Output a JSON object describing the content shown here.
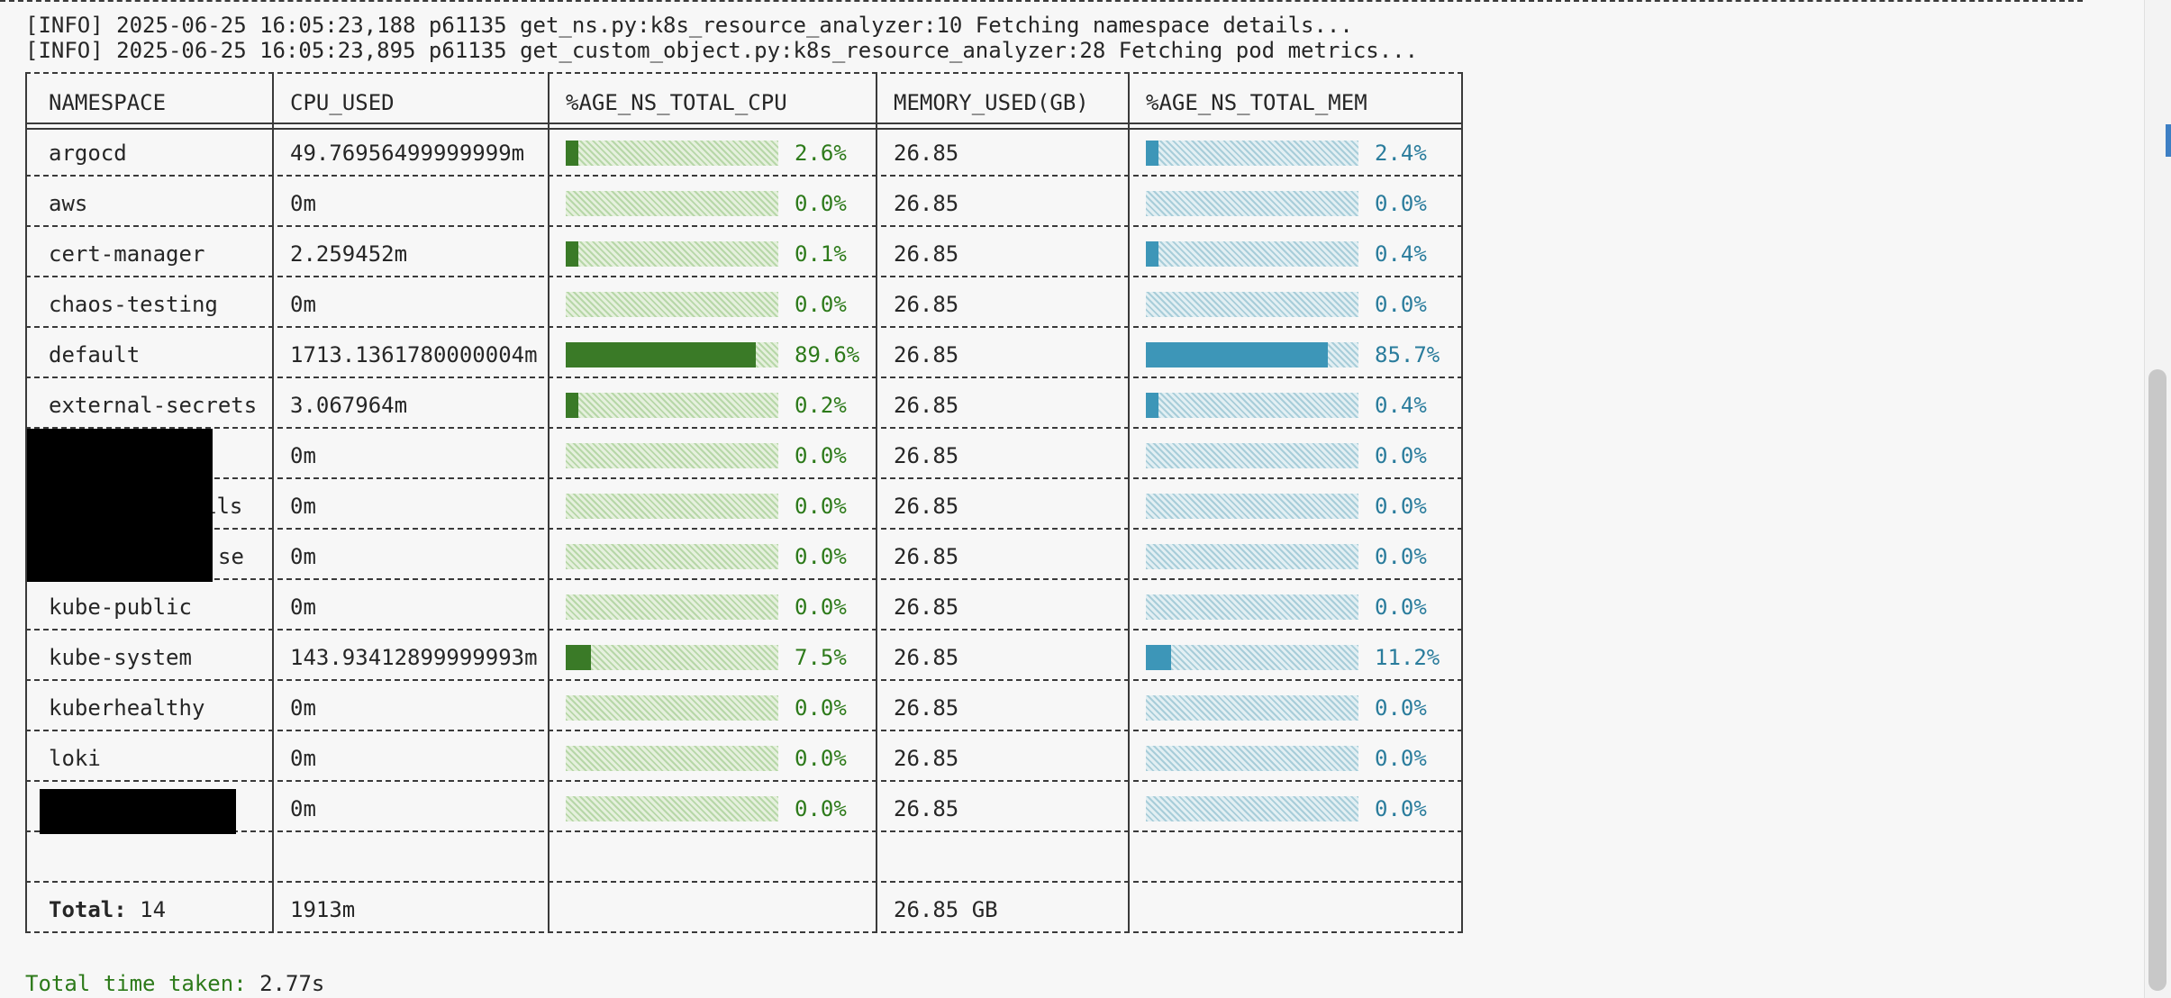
{
  "log": [
    "[INFO] 2025-06-25 16:05:23,188 p61135 get_ns.py:k8s_resource_analyzer:10 Fetching namespace details...",
    "[INFO] 2025-06-25 16:05:23,895 p61135 get_custom_object.py:k8s_resource_analyzer:28 Fetching pod metrics..."
  ],
  "table": {
    "headers": [
      "NAMESPACE",
      "CPU_USED",
      "%AGE_NS_TOTAL_CPU",
      "MEMORY_USED(GB)",
      "%AGE_NS_TOTAL_MEM"
    ],
    "rows": [
      {
        "namespace": "argocd",
        "cpu": "49.76956499999999m",
        "cpu_pct": "2.6%",
        "cpu_frac": 0.026,
        "mem": "26.85",
        "mem_pct": "2.4%",
        "mem_frac": 0.024
      },
      {
        "namespace": "aws",
        "cpu": "0m",
        "cpu_pct": "0.0%",
        "cpu_frac": 0.0,
        "mem": "26.85",
        "mem_pct": "0.0%",
        "mem_frac": 0.0
      },
      {
        "namespace": "cert-manager",
        "cpu": "2.259452m",
        "cpu_pct": "0.1%",
        "cpu_frac": 0.001,
        "mem": "26.85",
        "mem_pct": "0.4%",
        "mem_frac": 0.004
      },
      {
        "namespace": "chaos-testing",
        "cpu": "0m",
        "cpu_pct": "0.0%",
        "cpu_frac": 0.0,
        "mem": "26.85",
        "mem_pct": "0.0%",
        "mem_frac": 0.0
      },
      {
        "namespace": "default",
        "cpu": "1713.1361780000004m",
        "cpu_pct": "89.6%",
        "cpu_frac": 0.896,
        "mem": "26.85",
        "mem_pct": "85.7%",
        "mem_frac": 0.857
      },
      {
        "namespace": "external-secrets",
        "cpu": "3.067964m",
        "cpu_pct": "0.2%",
        "cpu_frac": 0.002,
        "mem": "26.85",
        "mem_pct": "0.4%",
        "mem_frac": 0.004
      },
      {
        "namespace": "",
        "cpu": "0m",
        "cpu_pct": "0.0%",
        "cpu_frac": 0.0,
        "mem": "26.85",
        "mem_pct": "0.0%",
        "mem_frac": 0.0
      },
      {
        "namespace": "ils",
        "cpu": "0m",
        "cpu_pct": "0.0%",
        "cpu_frac": 0.0,
        "mem": "26.85",
        "mem_pct": "0.0%",
        "mem_frac": 0.0
      },
      {
        "namespace": "se",
        "cpu": "0m",
        "cpu_pct": "0.0%",
        "cpu_frac": 0.0,
        "mem": "26.85",
        "mem_pct": "0.0%",
        "mem_frac": 0.0
      },
      {
        "namespace": "kube-public",
        "cpu": "0m",
        "cpu_pct": "0.0%",
        "cpu_frac": 0.0,
        "mem": "26.85",
        "mem_pct": "0.0%",
        "mem_frac": 0.0
      },
      {
        "namespace": "kube-system",
        "cpu": "143.93412899999993m",
        "cpu_pct": "7.5%",
        "cpu_frac": 0.075,
        "mem": "26.85",
        "mem_pct": "11.2%",
        "mem_frac": 0.112
      },
      {
        "namespace": "kuberhealthy",
        "cpu": "0m",
        "cpu_pct": "0.0%",
        "cpu_frac": 0.0,
        "mem": "26.85",
        "mem_pct": "0.0%",
        "mem_frac": 0.0
      },
      {
        "namespace": "loki",
        "cpu": "0m",
        "cpu_pct": "0.0%",
        "cpu_frac": 0.0,
        "mem": "26.85",
        "mem_pct": "0.0%",
        "mem_frac": 0.0
      },
      {
        "namespace": "",
        "cpu": "0m",
        "cpu_pct": "0.0%",
        "cpu_frac": 0.0,
        "mem": "26.85",
        "mem_pct": "0.0%",
        "mem_frac": 0.0
      }
    ],
    "total": {
      "label": "Total:",
      "count": "14",
      "cpu": "1913m",
      "mem": "26.85 GB"
    }
  },
  "footer": {
    "label": "Total time taken:",
    "value": "2.77s"
  },
  "colors": {
    "cpu_bar": "#3a7a27",
    "mem_bar": "#3d96b8",
    "cpu_text": "#2d7a1a",
    "mem_text": "#2a7c9c"
  }
}
